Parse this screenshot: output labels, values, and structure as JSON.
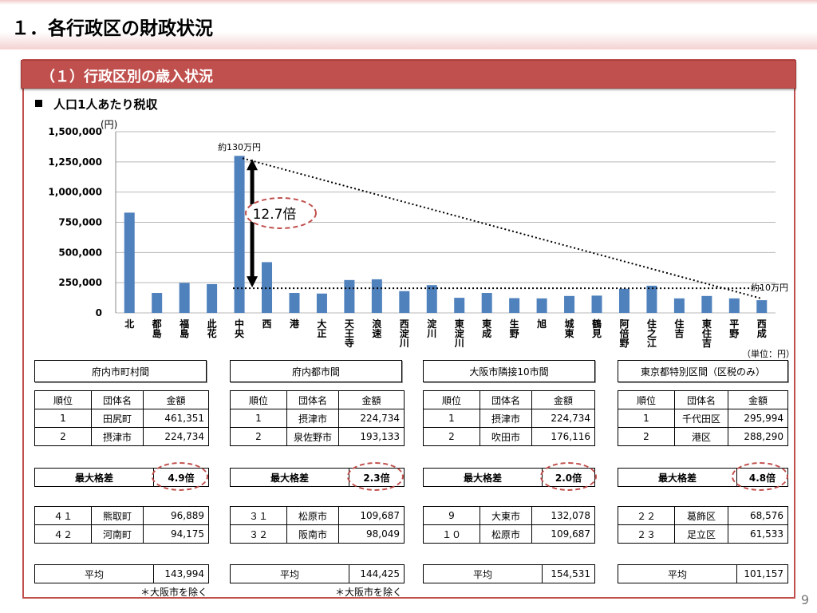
{
  "page": {
    "title": "１．各行政区の財政状況",
    "section": "（１）行政区別の歳入状況",
    "subheading": "人口1人あたり税収",
    "page_number": "9"
  },
  "colors": {
    "accent": "#c0504d",
    "bar": "#4f81bd"
  },
  "chart_data": {
    "type": "bar",
    "categories": [
      "北",
      "都島",
      "福島",
      "此花",
      "中央",
      "西",
      "港",
      "大正",
      "天王寺",
      "浪速",
      "西淀川",
      "淀川",
      "東淀川",
      "東成",
      "生野",
      "旭",
      "城東",
      "鶴見",
      "阿倍野",
      "住之江",
      "住吉",
      "東住吉",
      "平野",
      "西成"
    ],
    "values": [
      830000,
      165000,
      248000,
      238000,
      1300000,
      420000,
      165000,
      160000,
      272000,
      278000,
      180000,
      230000,
      125000,
      165000,
      122000,
      120000,
      140000,
      143000,
      200000,
      225000,
      120000,
      140000,
      120000,
      105000
    ],
    "ylim": [
      0,
      1500000
    ],
    "yticks": [
      "0",
      "250,000",
      "500,000",
      "750,000",
      "1,000,000",
      "1,250,000",
      "1,500,000"
    ],
    "y_unit": "(円)",
    "annotations": {
      "max_label": "約130万円",
      "min_label": "約10万円",
      "ratio": "12.7倍",
      "unit_note": "（単位：円）"
    },
    "grid": true
  },
  "groups": [
    {
      "title": "府内市町村間",
      "headers": [
        "順位",
        "団体名",
        "金額"
      ],
      "top": [
        [
          "1",
          "田尻町",
          "461,351"
        ],
        [
          "2",
          "摂津市",
          "224,734"
        ]
      ],
      "max_gap_label": "最大格差",
      "max_gap": "4.9倍",
      "bottom": [
        [
          "４１",
          "熊取町",
          "96,889"
        ],
        [
          "４２",
          "河南町",
          "94,175"
        ]
      ],
      "avg_label": "平均",
      "avg": "143,994",
      "note": "＊大阪市を除く"
    },
    {
      "title": "府内都市間",
      "headers": [
        "順位",
        "団体名",
        "金額"
      ],
      "top": [
        [
          "1",
          "摂津市",
          "224,734"
        ],
        [
          "2",
          "泉佐野市",
          "193,133"
        ]
      ],
      "max_gap_label": "最大格差",
      "max_gap": "2.3倍",
      "bottom": [
        [
          "３１",
          "松原市",
          "109,687"
        ],
        [
          "３２",
          "阪南市",
          "98,049"
        ]
      ],
      "avg_label": "平均",
      "avg": "144,425",
      "note": "＊大阪市を除く"
    },
    {
      "title": "大阪市隣接10市間",
      "headers": [
        "順位",
        "団体名",
        "金額"
      ],
      "top": [
        [
          "1",
          "摂津市",
          "224,734"
        ],
        [
          "2",
          "吹田市",
          "176,116"
        ]
      ],
      "max_gap_label": "最大格差",
      "max_gap": "2.0倍",
      "bottom": [
        [
          "9",
          "大東市",
          "132,078"
        ],
        [
          "１０",
          "松原市",
          "109,687"
        ]
      ],
      "avg_label": "平均",
      "avg": "154,531",
      "note": ""
    },
    {
      "title": "東京都特別区間（区税のみ）",
      "headers": [
        "順位",
        "団体名",
        "金額"
      ],
      "top": [
        [
          "1",
          "千代田区",
          "295,994"
        ],
        [
          "2",
          "港区",
          "288,290"
        ]
      ],
      "max_gap_label": "最大格差",
      "max_gap": "4.8倍",
      "bottom": [
        [
          "２２",
          "葛飾区",
          "68,576"
        ],
        [
          "２３",
          "足立区",
          "61,533"
        ]
      ],
      "avg_label": "平均",
      "avg": "101,157",
      "note": ""
    }
  ]
}
